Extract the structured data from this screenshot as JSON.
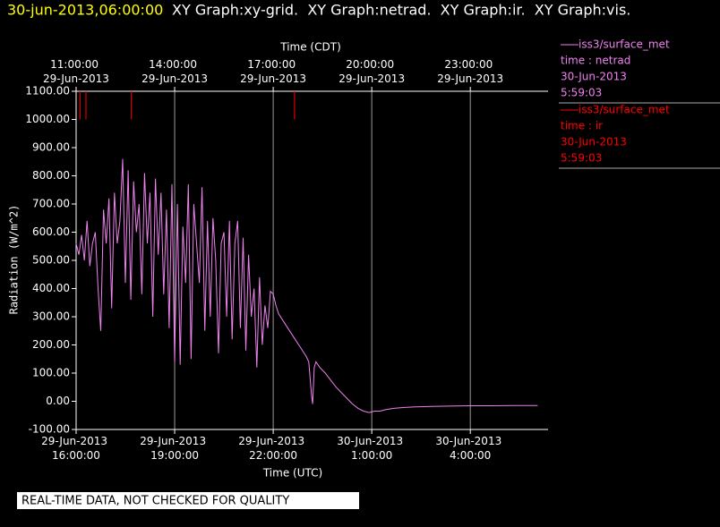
{
  "header": {
    "date": "30-jun-2013,06:00:00",
    "graphs": "XY Graph:xy-grid.  XY Graph:netrad.  XY Graph:ir.  XY Graph:vis."
  },
  "footer": "REAL-TIME DATA, NOT CHECKED FOR QUALITY",
  "chart_data": {
    "type": "line",
    "x_title": "Time (UTC)",
    "x2_title": "Time (CDT)",
    "y_title": "Radiation (W/m^2)",
    "xlim": [
      "2013-06-29 16:00",
      "2013-06-30 06:22"
    ],
    "xticks": [
      {
        "value": "2013-06-29 16:00",
        "label": "29-Jun-2013 16:00:00"
      },
      {
        "value": "2013-06-29 19:00",
        "label": "29-Jun-2013 19:00:00"
      },
      {
        "value": "2013-06-29 22:00",
        "label": "29-Jun-2013 22:00:00"
      },
      {
        "value": "2013-06-30 01:00",
        "label": "30-Jun-2013 1:00:00"
      },
      {
        "value": "2013-06-30 04:00",
        "label": "30-Jun-2013 4:00:00"
      }
    ],
    "x2ticks": [
      {
        "value": "2013-06-29 16:00",
        "label": "11:00:00 29-Jun-2013"
      },
      {
        "value": "2013-06-29 19:00",
        "label": "14:00:00 29-Jun-2013"
      },
      {
        "value": "2013-06-29 22:00",
        "label": "17:00:00 29-Jun-2013"
      },
      {
        "value": "2013-06-30 01:00",
        "label": "20:00:00 29-Jun-2013"
      },
      {
        "value": "2013-06-30 04:00",
        "label": "23:00:00 29-Jun-2013"
      }
    ],
    "ylim": [
      -100,
      1100
    ],
    "yticks": [
      {
        "value": 1100,
        "label": "1100.00"
      },
      {
        "value": 1000,
        "label": "1000.00"
      },
      {
        "value": 900,
        "label": "900.00"
      },
      {
        "value": 800,
        "label": "800.00"
      },
      {
        "value": 700,
        "label": "700.00"
      },
      {
        "value": 600,
        "label": "600.00"
      },
      {
        "value": 500,
        "label": "500.00"
      },
      {
        "value": 400,
        "label": "400.00"
      },
      {
        "value": 300,
        "label": "300.00"
      },
      {
        "value": 200,
        "label": "200.00"
      },
      {
        "value": 100,
        "label": "100.00"
      },
      {
        "value": 0,
        "label": "0.00"
      },
      {
        "value": -100,
        "label": "-100.00"
      }
    ],
    "grid": true,
    "series": [
      {
        "name": "iss3/surface_met",
        "color": "#ee82ee",
        "legend_lines": [
          "time : netrad",
          "30-Jun-2013",
          "5:59:03"
        ],
        "x": [
          "2013-06-29 16:00",
          "2013-06-29 16:05",
          "2013-06-29 16:10",
          "2013-06-29 16:15",
          "2013-06-29 16:20",
          "2013-06-29 16:25",
          "2013-06-29 16:30",
          "2013-06-29 16:35",
          "2013-06-29 16:40",
          "2013-06-29 16:45",
          "2013-06-29 16:50",
          "2013-06-29 16:55",
          "2013-06-29 17:00",
          "2013-06-29 17:05",
          "2013-06-29 17:10",
          "2013-06-29 17:15",
          "2013-06-29 17:20",
          "2013-06-29 17:25",
          "2013-06-29 17:30",
          "2013-06-29 17:35",
          "2013-06-29 17:40",
          "2013-06-29 17:45",
          "2013-06-29 17:50",
          "2013-06-29 17:55",
          "2013-06-29 18:00",
          "2013-06-29 18:05",
          "2013-06-29 18:10",
          "2013-06-29 18:15",
          "2013-06-29 18:20",
          "2013-06-29 18:25",
          "2013-06-29 18:30",
          "2013-06-29 18:35",
          "2013-06-29 18:40",
          "2013-06-29 18:45",
          "2013-06-29 18:50",
          "2013-06-29 18:55",
          "2013-06-29 19:00",
          "2013-06-29 19:05",
          "2013-06-29 19:10",
          "2013-06-29 19:15",
          "2013-06-29 19:20",
          "2013-06-29 19:25",
          "2013-06-29 19:30",
          "2013-06-29 19:35",
          "2013-06-29 19:40",
          "2013-06-29 19:45",
          "2013-06-29 19:50",
          "2013-06-29 19:55",
          "2013-06-29 20:00",
          "2013-06-29 20:05",
          "2013-06-29 20:10",
          "2013-06-29 20:15",
          "2013-06-29 20:20",
          "2013-06-29 20:25",
          "2013-06-29 20:30",
          "2013-06-29 20:35",
          "2013-06-29 20:40",
          "2013-06-29 20:45",
          "2013-06-29 20:50",
          "2013-06-29 20:55",
          "2013-06-29 21:00",
          "2013-06-29 21:05",
          "2013-06-29 21:10",
          "2013-06-29 21:15",
          "2013-06-29 21:20",
          "2013-06-29 21:25",
          "2013-06-29 21:30",
          "2013-06-29 21:35",
          "2013-06-29 21:40",
          "2013-06-29 21:45",
          "2013-06-29 21:50",
          "2013-06-29 21:55",
          "2013-06-29 22:00",
          "2013-06-29 22:05",
          "2013-06-29 22:10",
          "2013-06-29 22:20",
          "2013-06-29 22:30",
          "2013-06-29 22:40",
          "2013-06-29 22:50",
          "2013-06-29 23:00",
          "2013-06-29 23:05",
          "2013-06-29 23:10",
          "2013-06-29 23:12",
          "2013-06-29 23:15",
          "2013-06-29 23:18",
          "2013-06-29 23:25",
          "2013-06-29 23:35",
          "2013-06-29 23:45",
          "2013-06-29 23:55",
          "2013-06-30 00:05",
          "2013-06-30 00:15",
          "2013-06-30 00:25",
          "2013-06-30 00:35",
          "2013-06-30 00:45",
          "2013-06-30 00:55",
          "2013-06-30 01:05",
          "2013-06-30 01:15",
          "2013-06-30 01:25",
          "2013-06-30 01:40",
          "2013-06-30 02:00",
          "2013-06-30 02:20",
          "2013-06-30 02:50",
          "2013-06-30 03:20",
          "2013-06-30 04:00",
          "2013-06-30 04:40",
          "2013-06-30 05:20",
          "2013-06-30 06:03"
        ],
        "values": [
          560,
          520,
          590,
          500,
          640,
          480,
          560,
          600,
          400,
          250,
          680,
          560,
          720,
          330,
          740,
          560,
          640,
          860,
          420,
          820,
          360,
          780,
          600,
          700,
          380,
          810,
          560,
          740,
          300,
          790,
          520,
          740,
          380,
          680,
          260,
          770,
          140,
          700,
          130,
          620,
          420,
          770,
          150,
          700,
          560,
          420,
          760,
          250,
          640,
          300,
          650,
          500,
          170,
          560,
          600,
          300,
          640,
          220,
          560,
          640,
          260,
          580,
          180,
          520,
          300,
          400,
          120,
          440,
          200,
          340,
          260,
          390,
          380,
          340,
          310,
          280,
          250,
          220,
          190,
          160,
          140,
          20,
          -10,
          120,
          140,
          120,
          100,
          75,
          50,
          30,
          10,
          -10,
          -25,
          -35,
          -40,
          -35,
          -35,
          -30,
          -25,
          -22,
          -20,
          -18,
          -17,
          -16,
          -16,
          -15,
          -15
        ]
      },
      {
        "name": "iss3/surface_met",
        "color": "#ff0000",
        "legend_lines": [
          "time : ir",
          "30-Jun-2013",
          "5:59:03"
        ],
        "x": [
          "2013-06-29 16:07",
          "2013-06-29 16:07",
          null,
          "2013-06-29 16:18",
          "2013-06-29 16:18",
          null,
          "2013-06-29 17:41",
          "2013-06-29 17:41",
          null,
          "2013-06-29 22:39",
          "2013-06-29 22:39"
        ],
        "values": [
          1100,
          1000,
          null,
          1100,
          1000,
          null,
          1100,
          1000,
          null,
          1100,
          1000
        ]
      }
    ]
  }
}
